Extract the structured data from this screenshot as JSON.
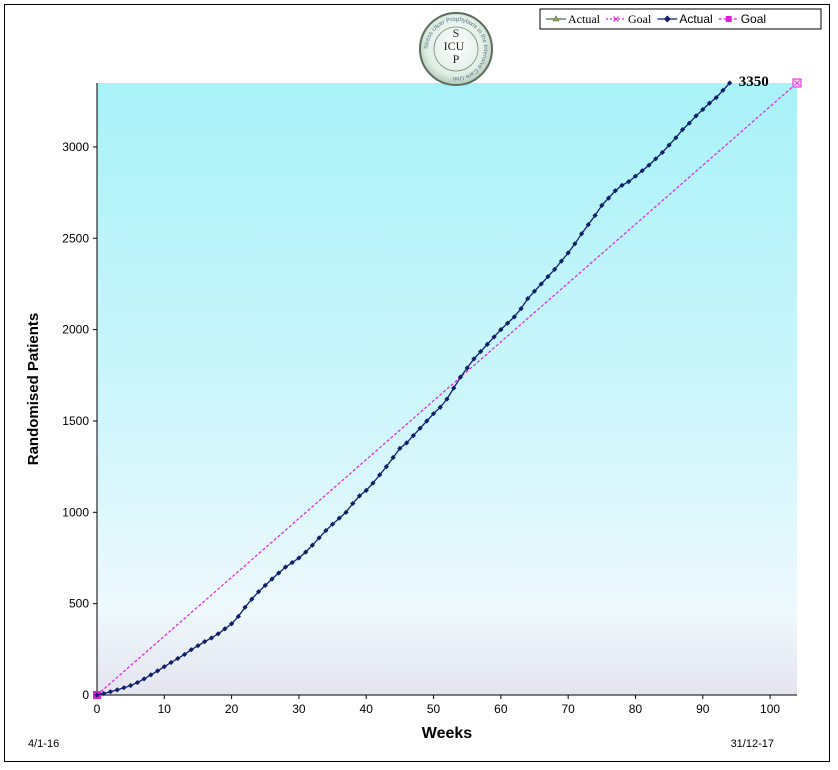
{
  "logo": {
    "text": [
      "S",
      "ICU",
      "P"
    ],
    "ring_text": "Stress Ulcer Prophylaxis in the Intensive Care Unit"
  },
  "legend": {
    "items": [
      {
        "label": "Actual",
        "style": "solid",
        "color": "#4e6b4e",
        "marker": "triangle",
        "font": "serif"
      },
      {
        "label": "Goal",
        "style": "dotted",
        "color": "#e21de0",
        "marker": "x",
        "font": "serif"
      },
      {
        "label": "Actual",
        "style": "solid",
        "color": "#0f1f6b",
        "marker": "diamond",
        "font": "sans"
      },
      {
        "label": "Goal",
        "style": "dashed",
        "color": "#e21de0",
        "marker": "square",
        "font": "sans"
      }
    ]
  },
  "start_date": "4/1-16",
  "end_date": "31/12-17",
  "chart_data": {
    "type": "line",
    "xlabel": "Weeks",
    "ylabel": "Randomised Patients",
    "xlim": [
      0,
      104
    ],
    "ylim": [
      0,
      3350
    ],
    "xticks": [
      0,
      10,
      20,
      30,
      40,
      50,
      60,
      70,
      80,
      90,
      100
    ],
    "yticks": [
      0,
      500,
      1000,
      1500,
      2000,
      2500,
      3000
    ],
    "annotation": {
      "text": "3350",
      "x": 94,
      "y": 3350
    },
    "series": [
      {
        "name": "Actual",
        "color": "#0f1f6b",
        "marker": "diamond",
        "x": [
          0,
          1,
          2,
          3,
          4,
          5,
          6,
          7,
          8,
          9,
          10,
          11,
          12,
          13,
          14,
          15,
          16,
          17,
          18,
          19,
          20,
          21,
          22,
          23,
          24,
          25,
          26,
          27,
          28,
          29,
          30,
          31,
          32,
          33,
          34,
          35,
          36,
          37,
          38,
          39,
          40,
          41,
          42,
          43,
          44,
          45,
          46,
          47,
          48,
          49,
          50,
          51,
          52,
          53,
          54,
          55,
          56,
          57,
          58,
          59,
          60,
          61,
          62,
          63,
          64,
          65,
          66,
          67,
          68,
          69,
          70,
          71,
          72,
          73,
          74,
          75,
          76,
          77,
          78,
          79,
          80,
          81,
          82,
          83,
          84,
          85,
          86,
          87,
          88,
          89,
          90,
          91,
          92,
          93,
          94
        ],
        "values": [
          0,
          8,
          18,
          28,
          40,
          52,
          68,
          88,
          110,
          132,
          155,
          178,
          200,
          222,
          248,
          270,
          292,
          312,
          335,
          362,
          390,
          430,
          480,
          525,
          565,
          600,
          635,
          668,
          700,
          725,
          750,
          782,
          820,
          860,
          900,
          935,
          968,
          1000,
          1048,
          1090,
          1120,
          1160,
          1205,
          1250,
          1300,
          1350,
          1380,
          1420,
          1460,
          1500,
          1540,
          1575,
          1620,
          1680,
          1740,
          1790,
          1840,
          1880,
          1920,
          1960,
          2000,
          2035,
          2070,
          2115,
          2170,
          2210,
          2250,
          2290,
          2330,
          2375,
          2420,
          2470,
          2525,
          2575,
          2625,
          2680,
          2720,
          2760,
          2790,
          2810,
          2840,
          2870,
          2900,
          2935,
          2970,
          3010,
          3050,
          3095,
          3130,
          3170,
          3205,
          3240,
          3270,
          3310,
          3350
        ]
      },
      {
        "name": "Goal",
        "color": "#e21de0",
        "marker": "square",
        "x": [
          0,
          104
        ],
        "values": [
          0,
          3350
        ]
      }
    ]
  }
}
